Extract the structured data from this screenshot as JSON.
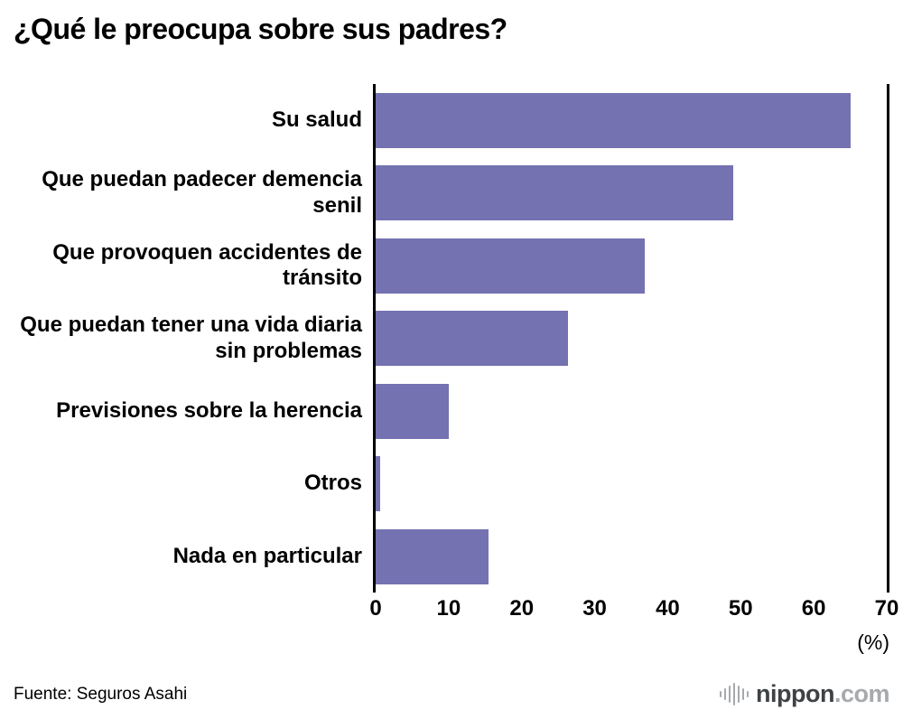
{
  "title": "¿Qué le preocupa sobre sus padres?",
  "source": "Fuente: Seguros Asahi",
  "logo": {
    "name": "nippon",
    "tld": ".com"
  },
  "chart_data": {
    "type": "bar",
    "orientation": "horizontal",
    "title": "¿Qué le preocupa sobre sus padres?",
    "categories": [
      "Su salud",
      "Que puedan padecer demencia senil",
      "Que provoquen accidentes de tránsito",
      "Que puedan tener una vida diaria sin problemas",
      "Previsiones sobre la herencia",
      "Otros",
      "Nada en particular"
    ],
    "values": [
      65.0,
      49.0,
      36.8,
      26.3,
      10.0,
      0.6,
      15.5
    ],
    "xlim": [
      0,
      70
    ],
    "xticks": [
      0,
      10,
      20,
      30,
      40,
      50,
      60,
      70
    ],
    "unit_label": "(%)",
    "bar_color": "#7472b0",
    "grid": false,
    "legend": false
  }
}
